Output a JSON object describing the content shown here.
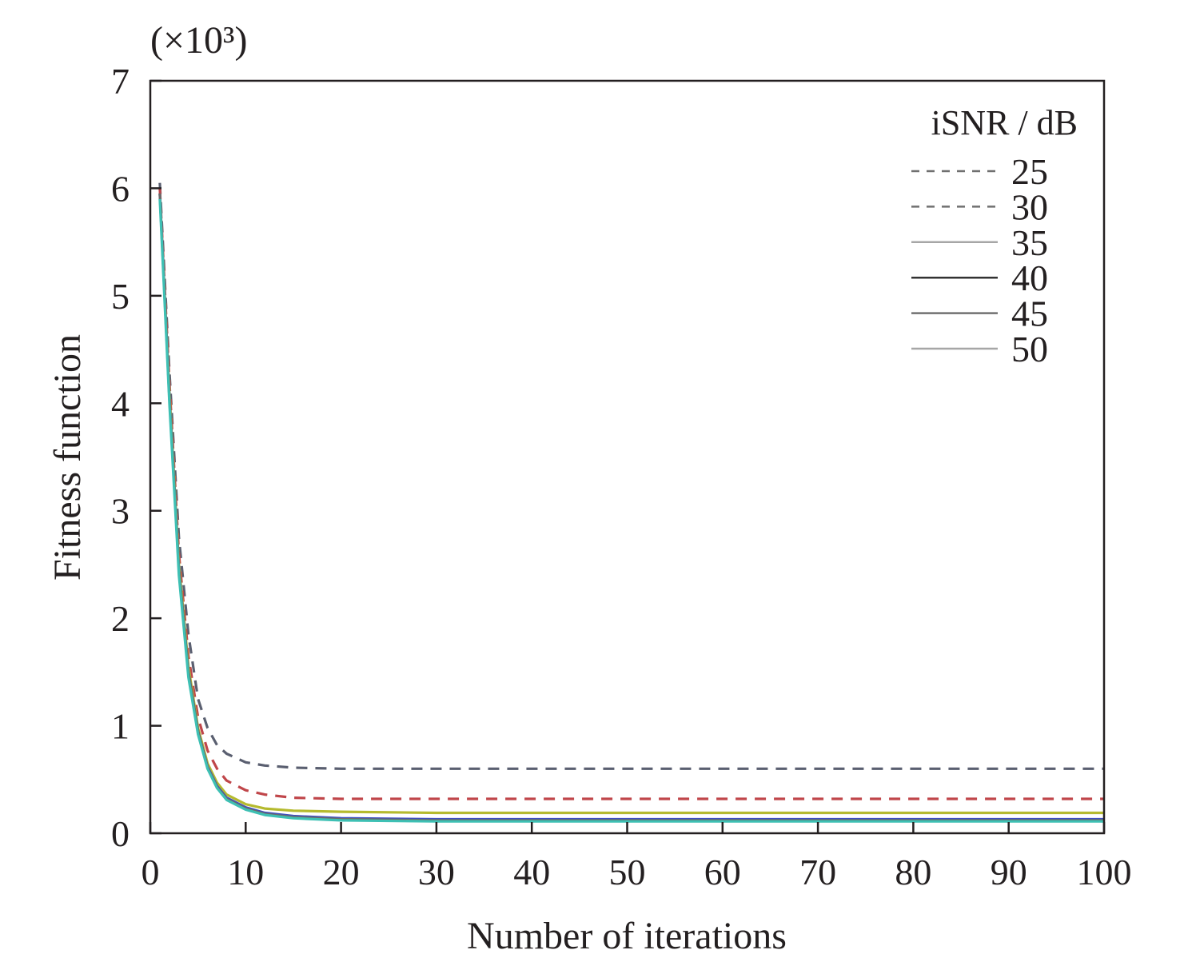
{
  "chart_data": {
    "type": "line",
    "title": "",
    "xlabel": "Number of iterations",
    "ylabel": "Fitness function",
    "y_multiplier": "(×10³)",
    "xlim": [
      0,
      100
    ],
    "ylim": [
      0,
      7
    ],
    "x_ticks": [
      0,
      10,
      20,
      30,
      40,
      50,
      60,
      70,
      80,
      90,
      100
    ],
    "y_ticks": [
      0,
      1,
      2,
      3,
      4,
      5,
      6,
      7
    ],
    "grid": false,
    "legend": {
      "title": "iSNR / dB",
      "placement": "top-right"
    },
    "x": [
      1,
      2,
      3,
      4,
      5,
      6,
      7,
      8,
      10,
      12,
      15,
      20,
      30,
      50,
      100
    ],
    "series": [
      {
        "name": "25",
        "style": "dashed",
        "color": "#5a5f70",
        "values": [
          6.05,
          4.3,
          2.75,
          1.85,
          1.25,
          0.98,
          0.82,
          0.74,
          0.66,
          0.63,
          0.61,
          0.6,
          0.6,
          0.6,
          0.6
        ]
      },
      {
        "name": "30",
        "style": "dashed",
        "color": "#c0464a",
        "values": [
          6.0,
          4.2,
          2.6,
          1.65,
          1.08,
          0.77,
          0.6,
          0.49,
          0.4,
          0.36,
          0.33,
          0.32,
          0.32,
          0.32,
          0.32
        ]
      },
      {
        "name": "35",
        "style": "solid",
        "color": "#b5ba2e",
        "values": [
          5.95,
          4.1,
          2.5,
          1.55,
          0.98,
          0.65,
          0.47,
          0.36,
          0.27,
          0.23,
          0.21,
          0.2,
          0.19,
          0.19,
          0.19
        ]
      },
      {
        "name": "40",
        "style": "solid",
        "color": "#3e4ec2",
        "values": [
          5.95,
          4.05,
          2.45,
          1.5,
          0.95,
          0.62,
          0.44,
          0.33,
          0.24,
          0.19,
          0.16,
          0.14,
          0.13,
          0.13,
          0.13
        ]
      },
      {
        "name": "45",
        "style": "solid",
        "color": "#6a6a6a",
        "values": [
          5.95,
          4.05,
          2.45,
          1.5,
          0.95,
          0.61,
          0.43,
          0.32,
          0.23,
          0.18,
          0.15,
          0.13,
          0.12,
          0.12,
          0.12
        ]
      },
      {
        "name": "50",
        "style": "solid",
        "color": "#3ec0b4",
        "values": [
          5.9,
          4.0,
          2.4,
          1.45,
          0.92,
          0.6,
          0.42,
          0.31,
          0.22,
          0.17,
          0.14,
          0.12,
          0.11,
          0.11,
          0.11
        ]
      }
    ]
  }
}
